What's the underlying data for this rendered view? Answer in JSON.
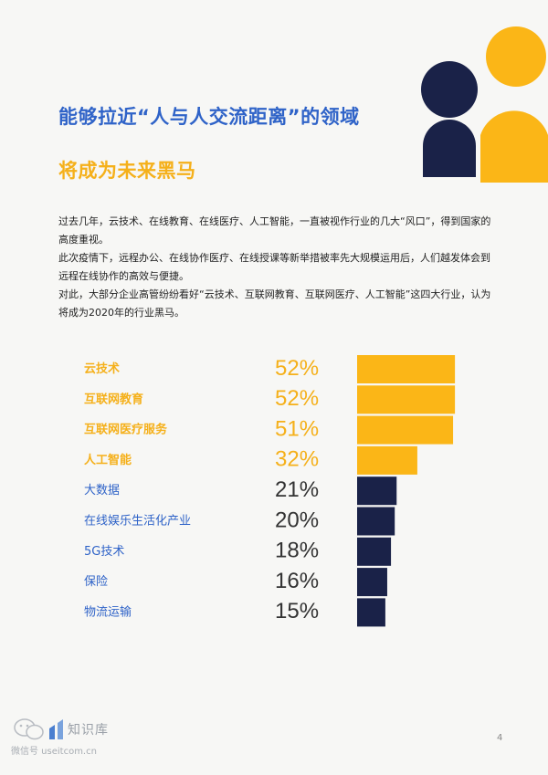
{
  "title_line1": "能够拉近“人与人交流距离”的领域",
  "title_line2": "将成为未来黑马",
  "intro": [
    "过去几年，云技术、在线教育、在线医疗、人工智能，一直被视作行业的几大“风口”，得到国家的高度重视。",
    "此次疫情下，远程办公、在线协作医疗、在线授课等新举措被率先大规模运用后，人们越发体会到远程在线协作的高效与便捷。",
    "对此，大部分企业高管纷纷看好“云技术、互联网教育、互联网医疗、人工智能”这四大行业，认为将成为2020年的行业黑马。"
  ],
  "chart_data": {
    "type": "bar",
    "orientation": "horizontal",
    "categories": [
      "云技术",
      "互联网教育",
      "互联网医疗服务",
      "人工智能",
      "大数据",
      "在线娱乐生活化产业",
      "5G技术",
      "保险",
      "物流运输"
    ],
    "values": [
      52,
      52,
      51,
      32,
      21,
      20,
      18,
      16,
      15
    ],
    "value_labels": [
      "52%",
      "52%",
      "51%",
      "32%",
      "21%",
      "20%",
      "18%",
      "16%",
      "15%"
    ],
    "highlighted": [
      true,
      true,
      true,
      true,
      false,
      false,
      false,
      false,
      false
    ],
    "unit": "%",
    "colors": {
      "highlight": "#fbb617",
      "normal": "#1a2248",
      "highlight_label": "#f5b01a",
      "normal_label": "#2f63c8",
      "value_normal": "#333333"
    },
    "grid": false,
    "legend": "none"
  },
  "colors": {
    "accent_blue": "#2f63c8",
    "accent_yellow": "#fbb617",
    "navy": "#1a2248"
  },
  "footer": {
    "brand": "知识库",
    "wechat": "微信号 useitcom.cn",
    "page_number": "4",
    "logo_icon": "wechat-icon"
  }
}
